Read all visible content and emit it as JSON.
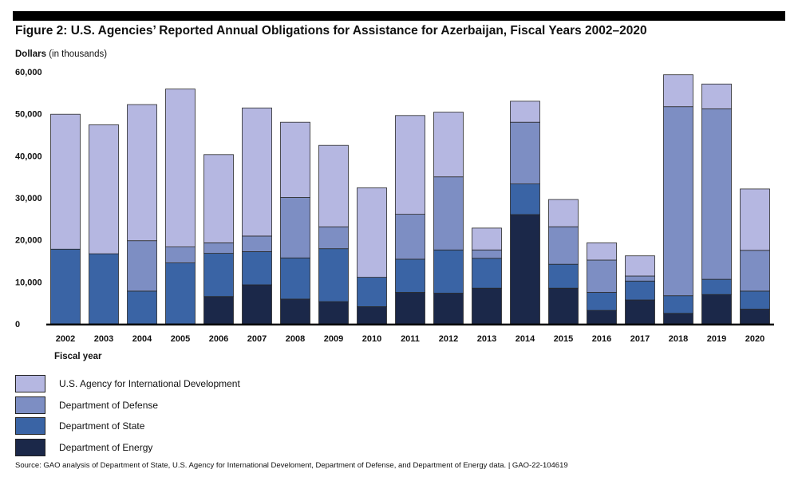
{
  "title": "Figure 2: U.S. Agencies’ Reported Annual Obligations for Assistance for Azerbaijan, Fiscal Years 2002–2020",
  "y_unit_bold": "Dollars",
  "y_unit_rest": " (in thousands)",
  "source": "Source: GAO analysis of Department of State, U.S. Agency for International Develoment, Department of Defense, and Department of Energy data.  |  GAO-22-104619",
  "chart_data": {
    "type": "bar",
    "stacked": true,
    "xlabel": "Fiscal year",
    "ylabel": "Dollars (in thousands)",
    "ylim": [
      0,
      60000
    ],
    "yticks": [
      0,
      10000,
      20000,
      30000,
      40000,
      50000,
      60000
    ],
    "ytick_labels": [
      "0",
      "10,000",
      "20,000",
      "30,000",
      "40,000",
      "50,000",
      "60,000"
    ],
    "grid": false,
    "legend_position": "bottom-left",
    "categories": [
      "2002",
      "2003",
      "2004",
      "2005",
      "2006",
      "2007",
      "2008",
      "2009",
      "2010",
      "2011",
      "2012",
      "2013",
      "2014",
      "2015",
      "2016",
      "2017",
      "2018",
      "2019",
      "2020"
    ],
    "series": [
      {
        "name": "Department of Energy",
        "color": "#1b2849",
        "values": [
          0,
          0,
          0,
          0,
          6500,
          9300,
          5900,
          5300,
          4100,
          7500,
          7300,
          8500,
          26000,
          8500,
          3200,
          5700,
          2500,
          7000,
          3500
        ]
      },
      {
        "name": "Department of State",
        "color": "#3a64a5",
        "values": [
          17800,
          16700,
          7800,
          14500,
          10300,
          7900,
          9800,
          12600,
          7000,
          7900,
          10300,
          7100,
          7300,
          5700,
          4300,
          4500,
          4200,
          3600,
          4300
        ]
      },
      {
        "name": "Department of Defense",
        "color": "#7d8ec3",
        "values": [
          0,
          0,
          12000,
          3800,
          2500,
          3700,
          14400,
          5200,
          0,
          10700,
          17400,
          2000,
          14700,
          8900,
          7700,
          1200,
          45000,
          40600,
          9700
        ]
      },
      {
        "name": "U.S. Agency for International Development",
        "color": "#b5b7e1",
        "values": [
          32100,
          30700,
          32400,
          37600,
          21000,
          30500,
          17900,
          19400,
          21300,
          23500,
          15400,
          5200,
          5000,
          6500,
          4100,
          4800,
          7600,
          5900,
          14600
        ]
      }
    ]
  },
  "legend": [
    {
      "label": "U.S. Agency for International Development",
      "color": "#b5b7e1"
    },
    {
      "label": "Department of Defense",
      "color": "#7d8ec3"
    },
    {
      "label": "Department of State",
      "color": "#3a64a5"
    },
    {
      "label": "Department of Energy",
      "color": "#1b2849"
    }
  ]
}
